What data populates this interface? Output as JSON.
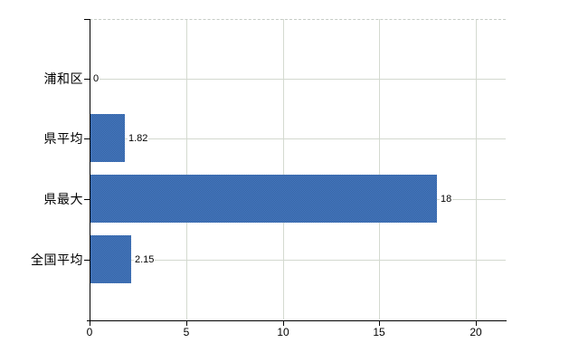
{
  "chart_data": {
    "type": "bar",
    "orientation": "horizontal",
    "categories": [
      "浦和区",
      "県平均",
      "県最大",
      "全国平均"
    ],
    "values": [
      0,
      1.82,
      18,
      2.15
    ],
    "value_labels": [
      "0",
      "1.82",
      "18",
      "2.15"
    ],
    "x_ticks": [
      0,
      5,
      10,
      15,
      20
    ],
    "x_tick_labels": [
      "0",
      "5",
      "10",
      "15",
      "20"
    ],
    "xlim": [
      0,
      21.55
    ],
    "grid": true,
    "legend": false,
    "title": "",
    "colors": {
      "bar": "#3e6db0",
      "bar_dither_light": "#4678c6",
      "bar_dither_dark": "#35649e",
      "gridline": "#d3d9cf",
      "plot_top_border": "#c6ccc6",
      "axis": "#000000",
      "text": "#000000",
      "background": "#ffffff"
    }
  }
}
